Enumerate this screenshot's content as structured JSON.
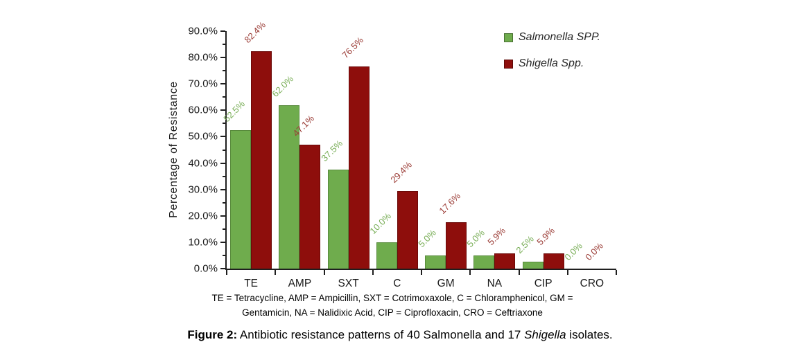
{
  "chart_data": {
    "type": "bar",
    "title": "",
    "ylabel": "Percentage of Resistance",
    "xlabel": "",
    "ylim": [
      0,
      90
    ],
    "y_major_step": 10,
    "y_minor_step": 5,
    "y_tick_labels": [
      "0.0%",
      "10.0%",
      "20.0%",
      "30.0%",
      "40.0%",
      "50.0%",
      "60.0%",
      "70.0%",
      "80.0%",
      "90.0%"
    ],
    "grid": false,
    "legend_position": "top-right",
    "categories": [
      "TE",
      "AMP",
      "SXT",
      "C",
      "GM",
      "NA",
      "CIP",
      "CRO"
    ],
    "series": [
      {
        "name": "Salmonella SPP.",
        "color": "#6FAC4D",
        "border_color": "#588A3C",
        "label_color": "#79AE57",
        "values": [
          52.5,
          62.0,
          37.5,
          10.0,
          5.0,
          5.0,
          2.5,
          0.0
        ]
      },
      {
        "name": "Shigella Spp.",
        "color": "#8E0E0C",
        "border_color": "#6B0908",
        "label_color": "#9A3A34",
        "values": [
          82.4,
          47.1,
          76.5,
          29.4,
          17.6,
          5.9,
          5.9,
          0.0
        ]
      }
    ]
  },
  "footnote": {
    "line1": "TE = Tetracycline, AMP = Ampicillin, SXT = Cotrimoxaxole, C = Chloramphenicol, GM =",
    "line2": "Gentamicin, NA = Nalidixic Acid, CIP = Ciprofloxacin, CRO = Ceftriaxone"
  },
  "caption": {
    "segments": [
      {
        "text": "Figure 2:",
        "bold": true
      },
      {
        "text": " Antibiotic resistance patterns of 40 Salmonella and 17 "
      },
      {
        "text": "Shigella",
        "italic": true
      },
      {
        "text": " isolates."
      }
    ]
  }
}
